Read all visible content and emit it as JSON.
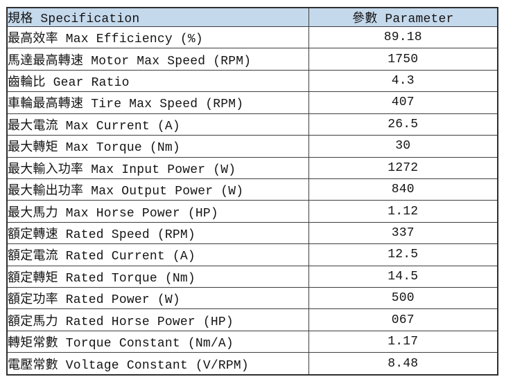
{
  "table": {
    "header": {
      "spec": "規格 Specification",
      "param": "參數 Parameter"
    },
    "rows": [
      {
        "spec": "最高效率 Max Efficiency (%)",
        "param": "89.18"
      },
      {
        "spec": "馬達最高轉速 Motor Max Speed (RPM)",
        "param": "1750"
      },
      {
        "spec": "齒輪比 Gear Ratio",
        "param": "4.3"
      },
      {
        "spec": "車輪最高轉速 Tire Max Speed (RPM)",
        "param": "407"
      },
      {
        "spec": "最大電流 Max Current (A)",
        "param": "26.5"
      },
      {
        "spec": "最大轉矩 Max Torque (Nm)",
        "param": "30"
      },
      {
        "spec": "最大輸入功率 Max Input Power (W)",
        "param": "1272"
      },
      {
        "spec": "最大輸出功率 Max Output Power (W)",
        "param": "840"
      },
      {
        "spec": "最大馬力 Max Horse Power (HP)",
        "param": "1.12"
      },
      {
        "spec": "額定轉速 Rated Speed (RPM)",
        "param": "337"
      },
      {
        "spec": "額定電流 Rated Current (A)",
        "param": "12.5"
      },
      {
        "spec": "額定轉矩 Rated Torque (Nm)",
        "param": "14.5"
      },
      {
        "spec": "額定功率 Rated Power (W)",
        "param": "500"
      },
      {
        "spec": "額定馬力 Rated Horse Power (HP)",
        "param": "067"
      },
      {
        "spec": "轉矩常數 Torque Constant (Nm/A)",
        "param": "1.17"
      },
      {
        "spec": "電壓常數 Voltage Constant (V/RPM)",
        "param": "8.48"
      }
    ],
    "colors": {
      "header_bg": "#c5d9ec",
      "border": "#3d3d3d",
      "text": "#141414"
    }
  },
  "chart_data": {
    "type": "table",
    "title": "規格 Specification / 參數 Parameter",
    "columns": [
      "規格 Specification",
      "參數 Parameter"
    ],
    "rows": [
      [
        "最高效率 Max Efficiency (%)",
        "89.18"
      ],
      [
        "馬達最高轉速 Motor Max Speed (RPM)",
        "1750"
      ],
      [
        "齒輪比 Gear Ratio",
        "4.3"
      ],
      [
        "車輪最高轉速 Tire Max Speed (RPM)",
        "407"
      ],
      [
        "最大電流 Max Current (A)",
        "26.5"
      ],
      [
        "最大轉矩 Max Torque (Nm)",
        "30"
      ],
      [
        "最大輸入功率 Max Input Power (W)",
        "1272"
      ],
      [
        "最大輸出功率 Max Output Power (W)",
        "840"
      ],
      [
        "最大馬力 Max Horse Power (HP)",
        "1.12"
      ],
      [
        "額定轉速 Rated Speed (RPM)",
        "337"
      ],
      [
        "額定電流 Rated Current (A)",
        "12.5"
      ],
      [
        "額定轉矩 Rated Torque (Nm)",
        "14.5"
      ],
      [
        "額定功率 Rated Power (W)",
        "500"
      ],
      [
        "額定馬力 Rated Horse Power (HP)",
        "067"
      ],
      [
        "轉矩常數 Torque Constant (Nm/A)",
        "1.17"
      ],
      [
        "電壓常數 Voltage Constant (V/RPM)",
        "8.48"
      ]
    ]
  }
}
